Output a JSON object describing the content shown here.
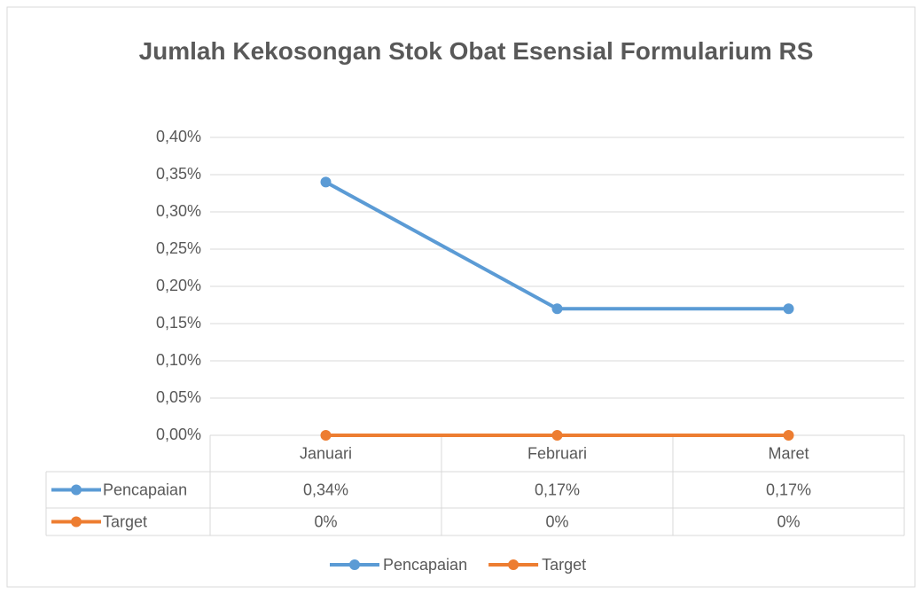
{
  "chart_data": {
    "type": "line",
    "title": "Jumlah Kekosongan Stok Obat Esensial Formularium RS",
    "categories": [
      "Januari",
      "Februari",
      "Maret"
    ],
    "series": [
      {
        "name": "Pencapaian",
        "color": "#5b9bd5",
        "values": [
          0.34,
          0.17,
          0.17
        ],
        "value_labels": [
          "0,34%",
          "0,17%",
          "0,17%"
        ]
      },
      {
        "name": "Target",
        "color": "#ed7d31",
        "values": [
          0,
          0,
          0
        ],
        "value_labels": [
          "0%",
          "0%",
          "0%"
        ]
      }
    ],
    "ylim": [
      0,
      0.4
    ],
    "yticks": [
      {
        "value": 0,
        "label": "0,00%"
      },
      {
        "value": 0.05,
        "label": "0,05%"
      },
      {
        "value": 0.1,
        "label": "0,10%"
      },
      {
        "value": 0.15,
        "label": "0,15%"
      },
      {
        "value": 0.2,
        "label": "0,20%"
      },
      {
        "value": 0.25,
        "label": "0,25%"
      },
      {
        "value": 0.3,
        "label": "0,30%"
      },
      {
        "value": 0.35,
        "label": "0,35%"
      },
      {
        "value": 0.4,
        "label": "0,40%"
      }
    ],
    "grid": true,
    "legend": "bottom",
    "data_table": true
  }
}
